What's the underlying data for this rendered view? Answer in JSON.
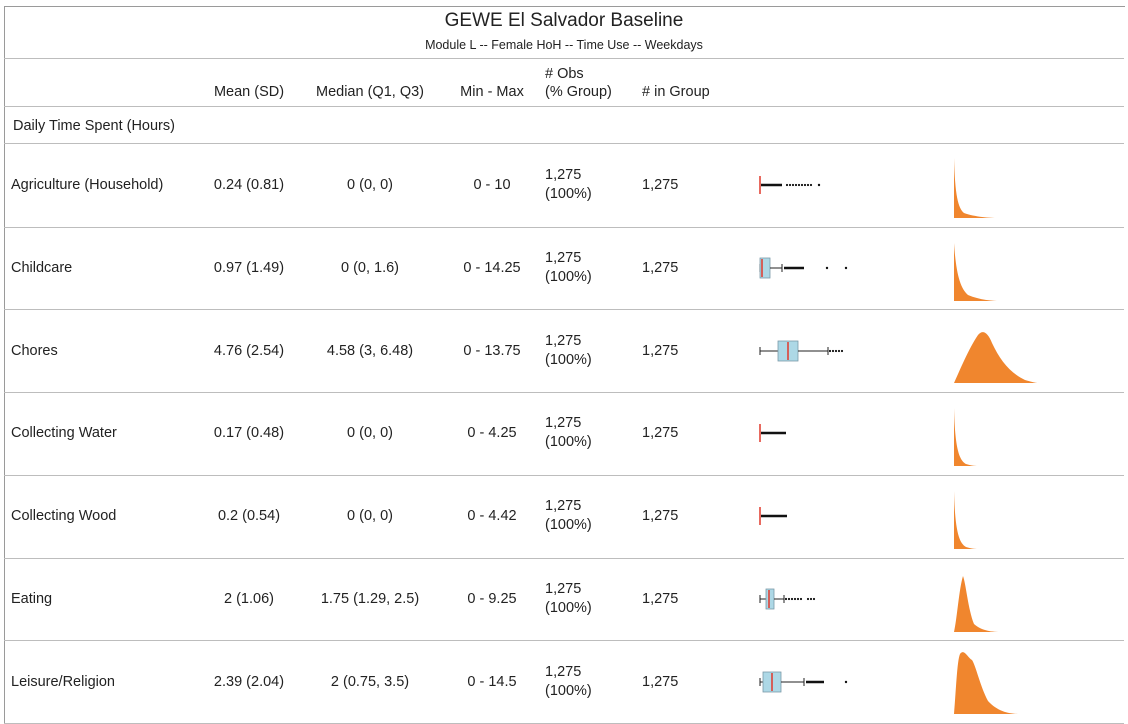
{
  "header": {
    "title": "GEWE El Salvador Baseline",
    "subtitle": "Module L -- Female HoH -- Time Use -- Weekdays"
  },
  "columns": {
    "mean": "Mean (SD)",
    "median": "Median (Q1, Q3)",
    "minmax": "Min - Max",
    "obs_line1": "# Obs",
    "obs_line2": "(% Group)",
    "in_group": "# in Group"
  },
  "section_label": "Daily Time Spent (Hours)",
  "colors": {
    "box_fill": "#add8e6",
    "median_line": "#e0392b",
    "density_fill": "#f0862e",
    "rule": "#bdbdbd"
  },
  "rows": [
    {
      "label": "Agriculture (Household)",
      "mean_sd": "0.24 (0.81)",
      "median_q": "0 (0, 0)",
      "min_max": "0 - 10",
      "obs": "1,275",
      "obs_pct": "(100%)",
      "in_group": "1,275"
    },
    {
      "label": "Childcare",
      "mean_sd": "0.97 (1.49)",
      "median_q": "0 (0, 1.6)",
      "min_max": "0 - 14.25",
      "obs": "1,275",
      "obs_pct": "(100%)",
      "in_group": "1,275"
    },
    {
      "label": "Chores",
      "mean_sd": "4.76 (2.54)",
      "median_q": "4.58 (3, 6.48)",
      "min_max": "0 - 13.75",
      "obs": "1,275",
      "obs_pct": "(100%)",
      "in_group": "1,275"
    },
    {
      "label": "Collecting Water",
      "mean_sd": "0.17 (0.48)",
      "median_q": "0 (0, 0)",
      "min_max": "0 - 4.25",
      "obs": "1,275",
      "obs_pct": "(100%)",
      "in_group": "1,275"
    },
    {
      "label": "Collecting Wood",
      "mean_sd": "0.2 (0.54)",
      "median_q": "0 (0, 0)",
      "min_max": "0 - 4.42",
      "obs": "1,275",
      "obs_pct": "(100%)",
      "in_group": "1,275"
    },
    {
      "label": "Eating",
      "mean_sd": "2 (1.06)",
      "median_q": "1.75 (1.29, 2.5)",
      "min_max": "0 - 9.25",
      "obs": "1,275",
      "obs_pct": "(100%)",
      "in_group": "1,275"
    },
    {
      "label": "Leisure/Religion",
      "mean_sd": "2.39 (2.04)",
      "median_q": "2 (0.75, 3.5)",
      "min_max": "0 - 14.5",
      "obs": "1,275",
      "obs_pct": "(100%)",
      "in_group": "1,275"
    }
  ]
}
